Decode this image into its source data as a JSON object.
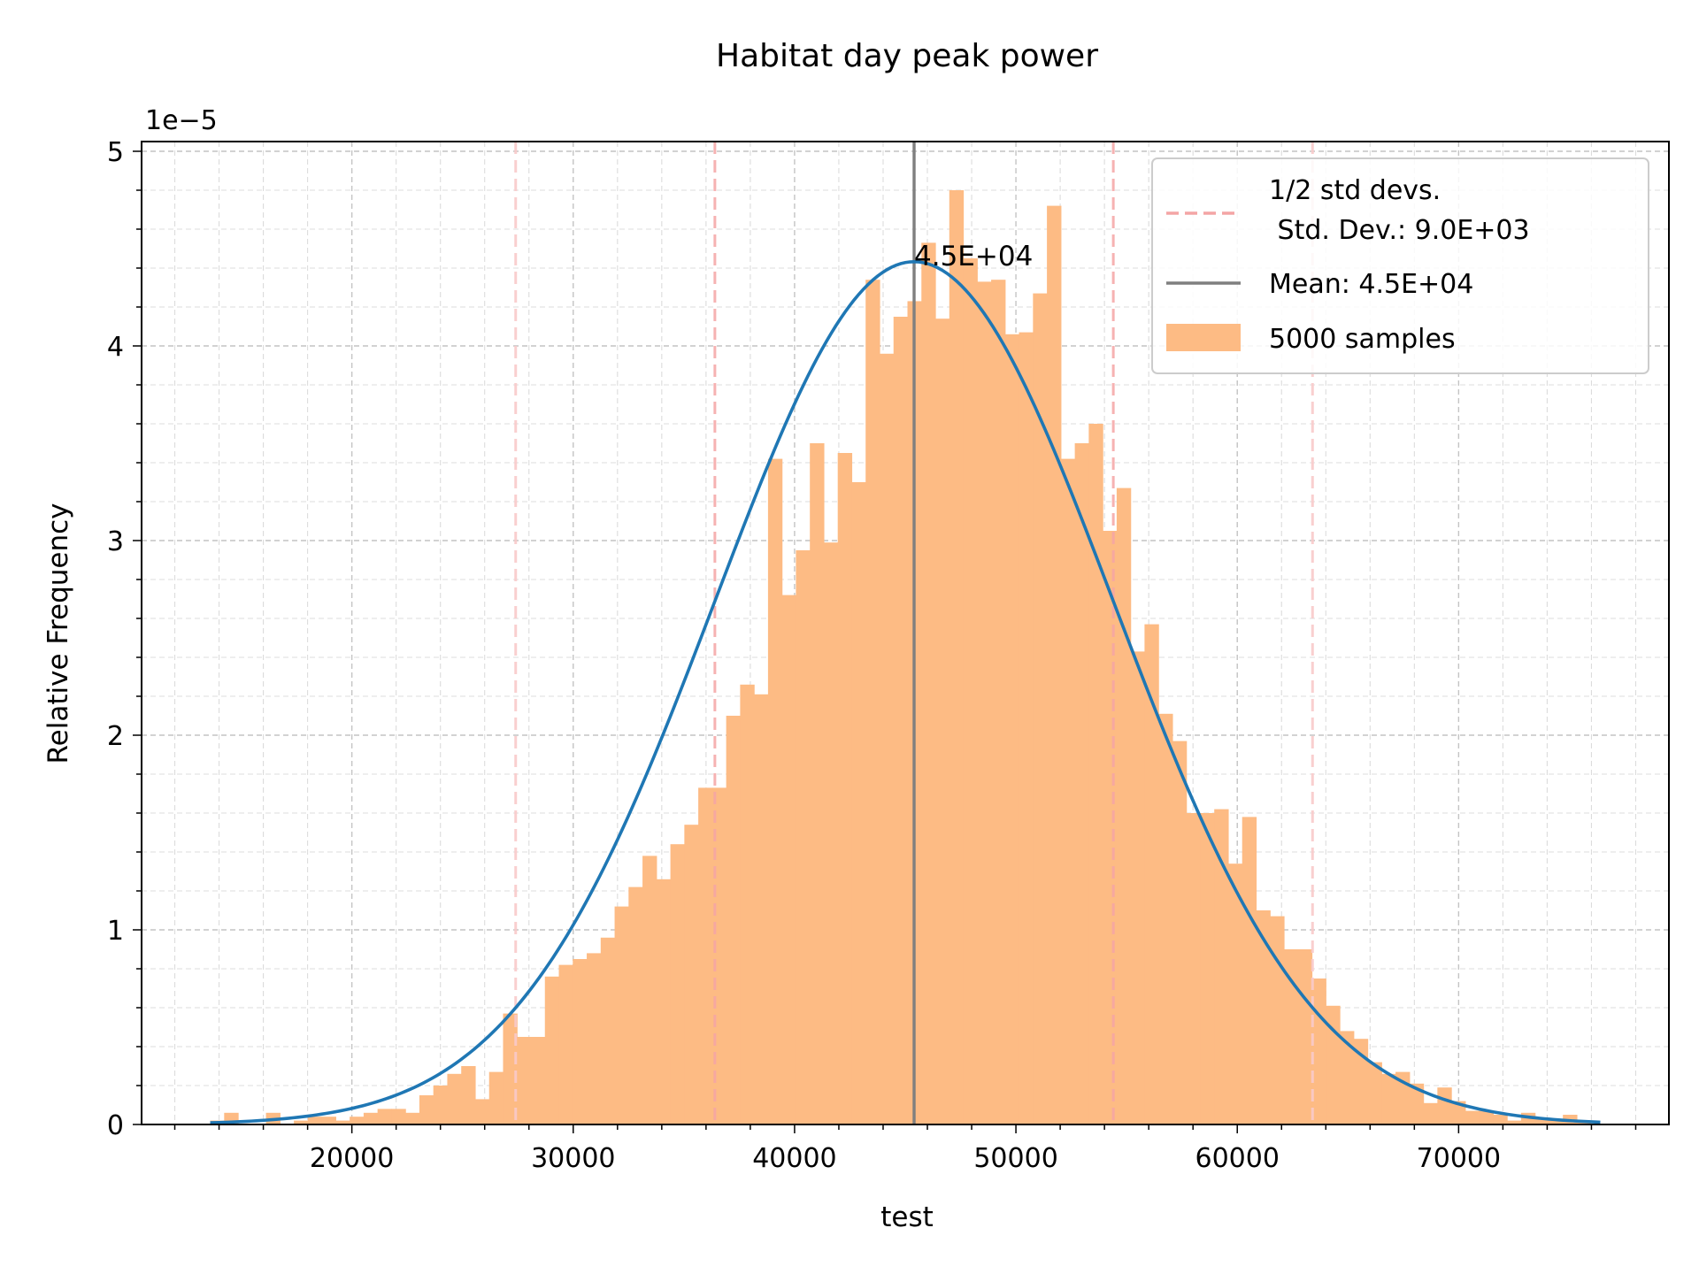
{
  "chart_data": {
    "type": "bar",
    "title": "Habitat  day peak power",
    "xlabel": "test",
    "ylabel": "Relative Frequency",
    "y_offset_text": "1e−5",
    "y_scale": 1e-05,
    "xlim": [
      10500,
      79500
    ],
    "ylim": [
      0,
      5.05
    ],
    "xticks": [
      20000,
      30000,
      40000,
      50000,
      60000,
      70000
    ],
    "yticks": [
      0,
      1,
      2,
      3,
      4,
      5
    ],
    "grid": true,
    "legend_position": "top-right",
    "colors": {
      "hist": "#fdbb84",
      "fit_curve": "#1f77b4",
      "mean_line": "#7f7f7f",
      "std_lines": "#f4a5a5",
      "std_lines_outer": "#f8caca"
    },
    "histogram": {
      "bin_start": 13600,
      "bin_width": 630,
      "values": [
        0.02,
        0.06,
        0.0,
        0.0,
        0.06,
        0.0,
        0.02,
        0.04,
        0.04,
        0.02,
        0.04,
        0.06,
        0.08,
        0.08,
        0.06,
        0.15,
        0.2,
        0.26,
        0.3,
        0.13,
        0.27,
        0.57,
        0.45,
        0.45,
        0.76,
        0.82,
        0.85,
        0.88,
        0.96,
        1.12,
        1.22,
        1.38,
        1.26,
        1.44,
        1.54,
        1.73,
        1.73,
        2.1,
        2.26,
        2.21,
        3.42,
        2.72,
        2.95,
        3.5,
        2.99,
        3.45,
        3.3,
        4.34,
        3.96,
        4.15,
        4.23,
        4.53,
        4.14,
        4.8,
        4.45,
        4.33,
        4.34,
        4.06,
        4.07,
        4.27,
        4.72,
        3.42,
        3.5,
        3.6,
        3.05,
        3.27,
        2.43,
        2.57,
        2.11,
        1.97,
        1.6,
        1.6,
        1.62,
        1.34,
        1.58,
        1.1,
        1.07,
        0.9,
        0.9,
        0.75,
        0.61,
        0.48,
        0.44,
        0.32,
        0.26,
        0.27,
        0.21,
        0.11,
        0.19,
        0.12,
        0.07,
        0.07,
        0.05,
        0.02,
        0.06,
        0.03,
        0.02,
        0.05,
        0.02
      ]
    },
    "fit_curve": {
      "name": "normal",
      "mean": 45400,
      "std": 9000,
      "x_range": [
        13600,
        76400
      ]
    },
    "mean_value": 45400,
    "std_lines": [
      27400,
      36400,
      54400,
      63400
    ],
    "annotation": "4.5E+04",
    "legend": [
      {
        "label": "1/2 std devs.\n Std. Dev.: 9.0E+03",
        "style": "dashed"
      },
      {
        "label": "Mean: 4.5E+04",
        "style": "solid"
      },
      {
        "label": "5000 samples",
        "style": "patch"
      }
    ]
  }
}
